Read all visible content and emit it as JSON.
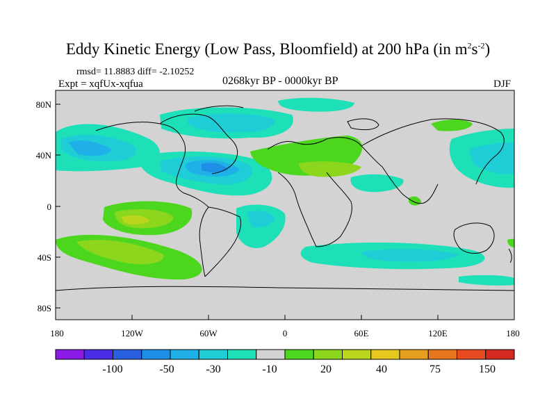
{
  "title": {
    "main": "Eddy Kinetic Energy (Low Pass, Bloomfield) at 200 hPa (in m",
    "sup1": "2",
    "mid": "s",
    "sup2": "-2",
    "end": ")"
  },
  "stats": "rmsd= 11.8883 diff= -2.10252",
  "experiment": "Expt = xqfUx-xqfua",
  "period": "0268kyr BP - 0000kyr BP",
  "season": "DJF",
  "map": {
    "lon_ticks": [
      "180",
      "120W",
      "60W",
      "0",
      "60E",
      "120E",
      "180"
    ],
    "lat_ticks": [
      "80N",
      "40N",
      "0",
      "40S",
      "80S"
    ],
    "ocean_color": "#d3d3d3"
  },
  "colorbar": {
    "colors": [
      "#8b1ae6",
      "#4a2ee6",
      "#2a5fe0",
      "#1e8fe6",
      "#1eb0e6",
      "#1ecdd6",
      "#1ee0b8",
      "#d3d3d3",
      "#4cd61e",
      "#8cd61e",
      "#bcd61e",
      "#e6c81e",
      "#e6a01e",
      "#e6761e",
      "#e64a1e",
      "#d22a1e"
    ],
    "labels": [
      "-100",
      "-50",
      "-30",
      "-10",
      "20",
      "40",
      "75",
      "150"
    ]
  }
}
